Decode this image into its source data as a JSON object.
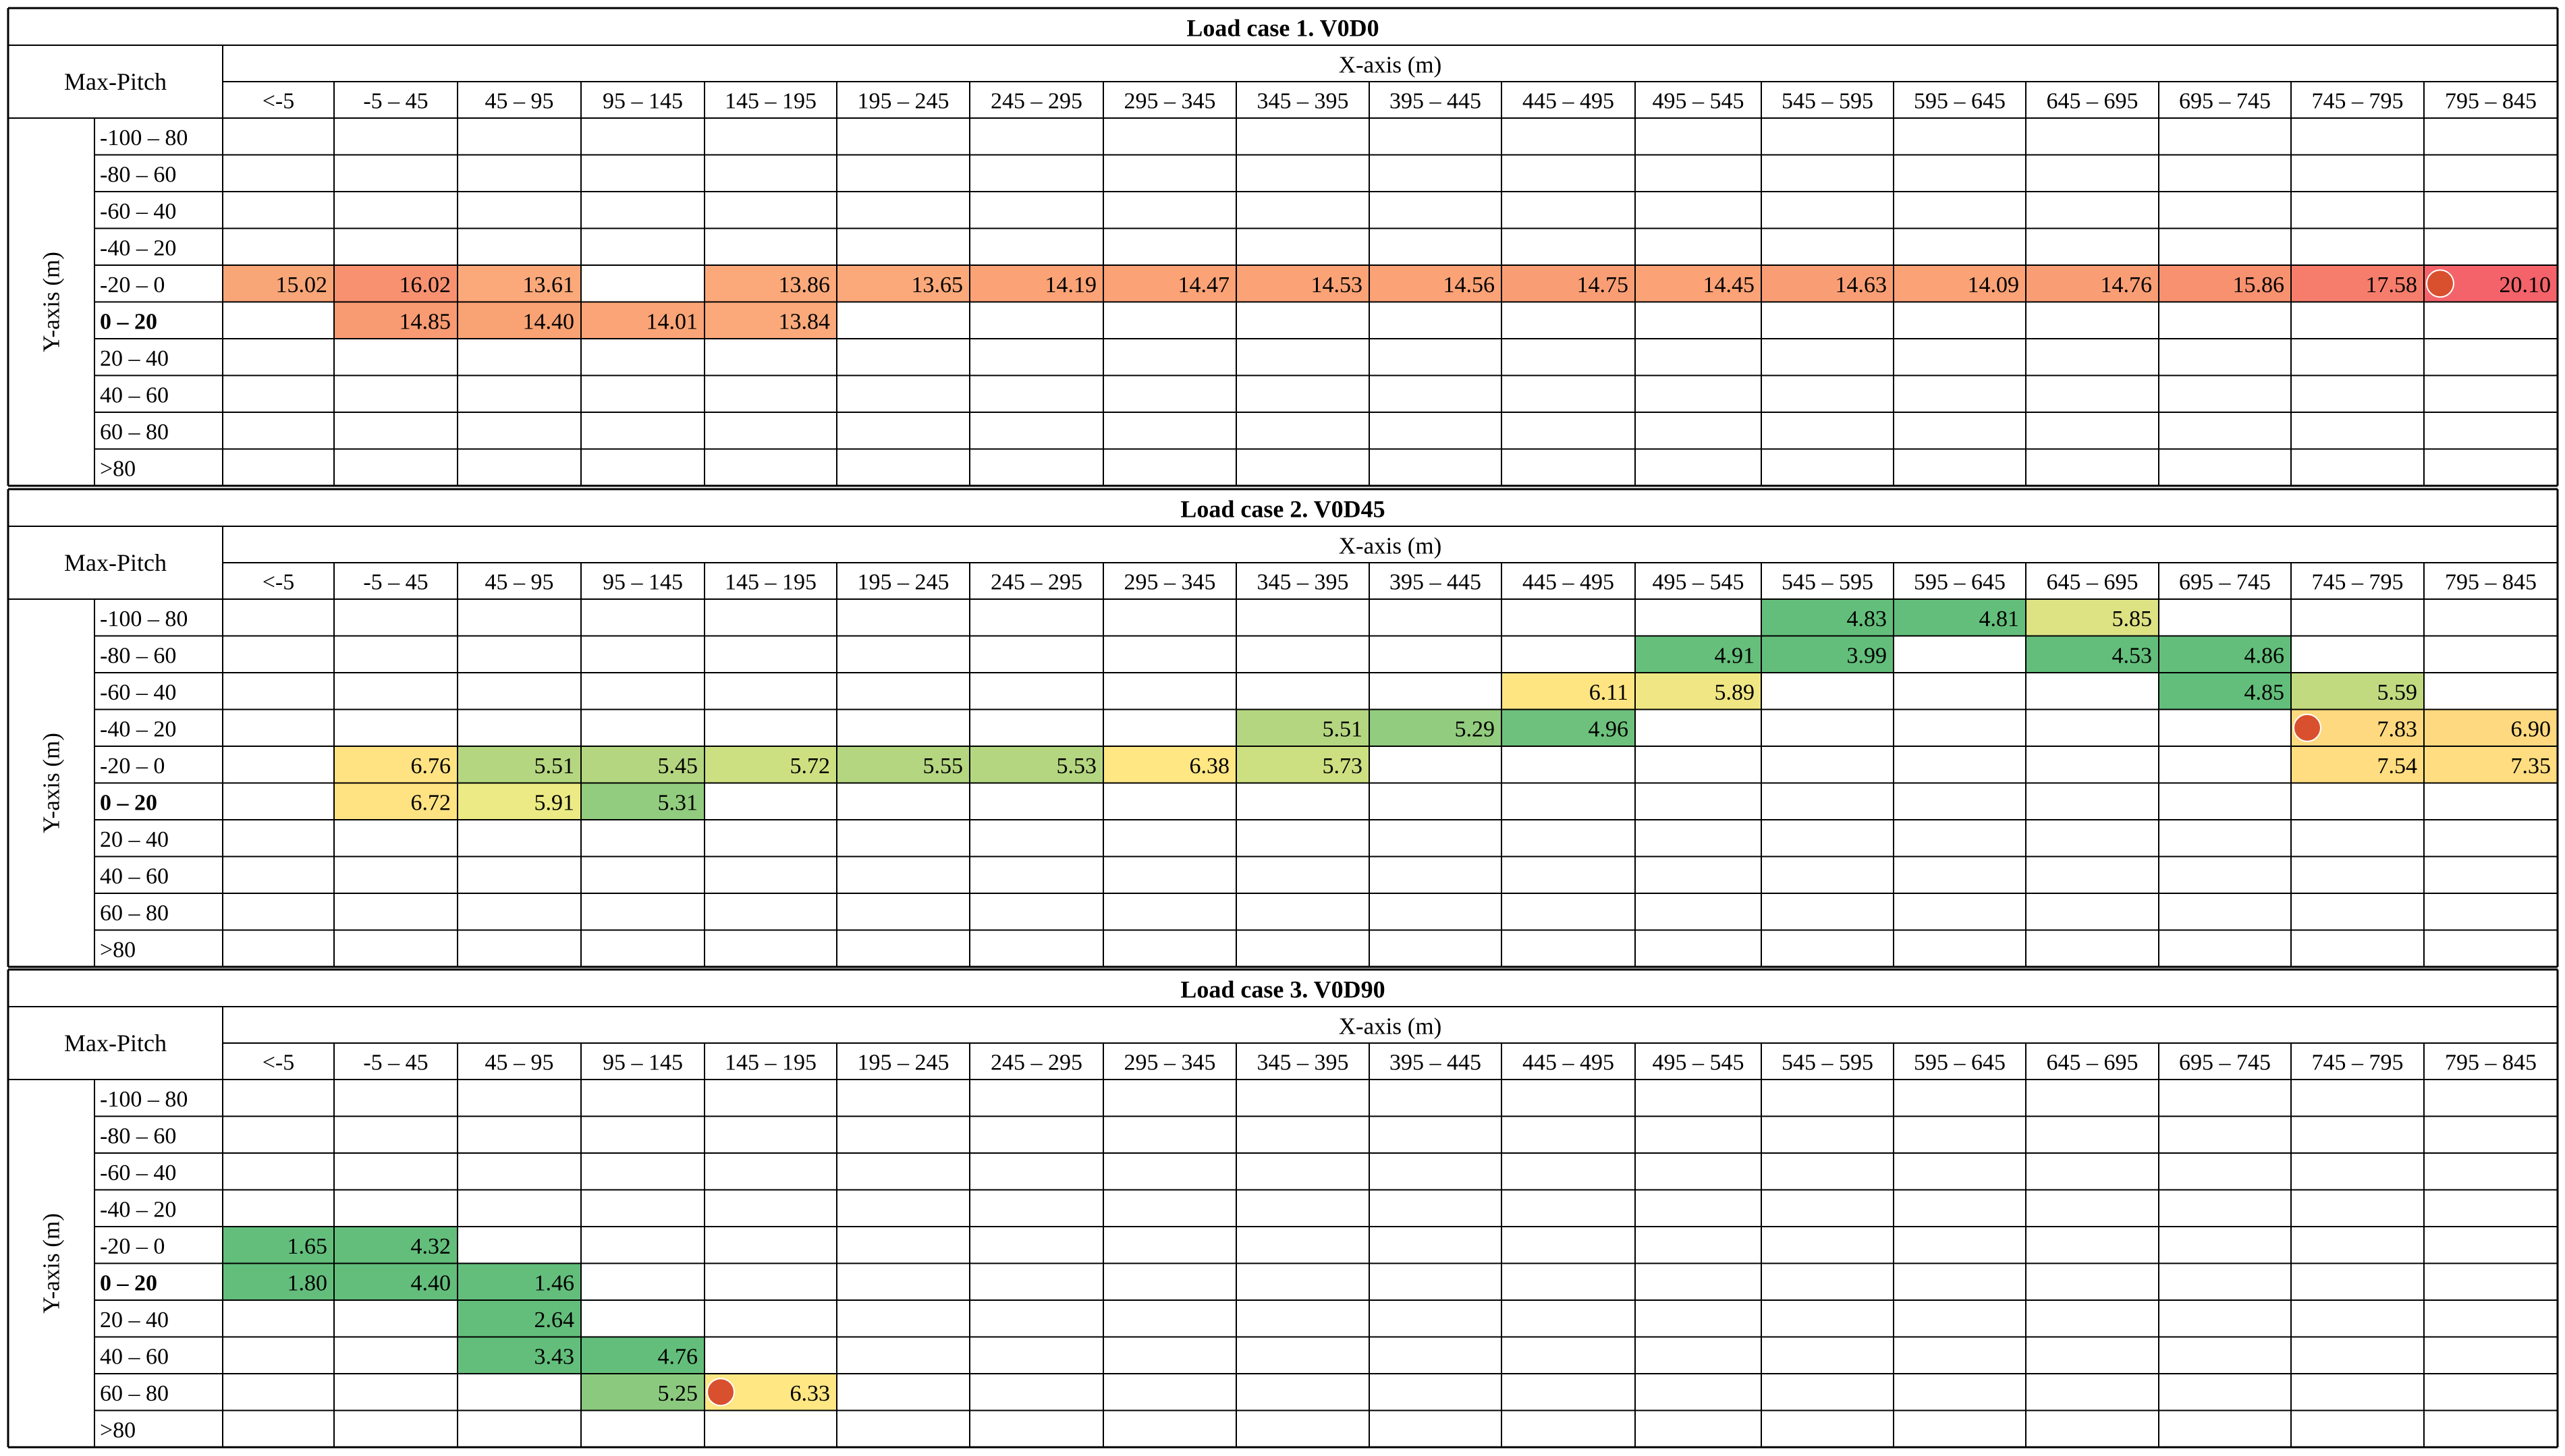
{
  "x_axis_label": "X-axis (m)",
  "y_axis_label": "Y-axis (m)",
  "corner_label": "Max-Pitch",
  "x_categories": [
    "<-5",
    "-5 – 45",
    "45 – 95",
    "95 – 145",
    "145 – 195",
    "195 – 245",
    "245 – 295",
    "295 – 345",
    "345 – 395",
    "395 – 445",
    "445 – 495",
    "495 – 545",
    "545 – 595",
    "595 – 645",
    "645 – 695",
    "695 – 745",
    "745 – 795",
    "795 – 845"
  ],
  "y_categories": [
    "-100 – 80",
    "-80 – 60",
    "-60 – 40",
    "-40 – 20",
    "-20 – 0",
    "0 – 20",
    "20 – 40",
    "40 – 60",
    "60 – 80",
    ">80"
  ],
  "bold_row_index": 5,
  "marker_color": "#d9502e",
  "chart_data": [
    {
      "type": "heatmap",
      "title": "Load case 1. V0D0",
      "cells": [
        {
          "row": 4,
          "col": 0,
          "value": "15.02",
          "color": "#f8a577"
        },
        {
          "row": 4,
          "col": 1,
          "value": "16.02",
          "color": "#f89170"
        },
        {
          "row": 4,
          "col": 2,
          "value": "13.61",
          "color": "#fba97a"
        },
        {
          "row": 4,
          "col": 4,
          "value": "13.86",
          "color": "#fba97a"
        },
        {
          "row": 4,
          "col": 5,
          "value": "13.65",
          "color": "#fba97a"
        },
        {
          "row": 4,
          "col": 6,
          "value": "14.19",
          "color": "#fba276"
        },
        {
          "row": 4,
          "col": 7,
          "value": "14.47",
          "color": "#fba276"
        },
        {
          "row": 4,
          "col": 8,
          "value": "14.53",
          "color": "#fba276"
        },
        {
          "row": 4,
          "col": 9,
          "value": "14.56",
          "color": "#fba276"
        },
        {
          "row": 4,
          "col": 10,
          "value": "14.75",
          "color": "#f99e74"
        },
        {
          "row": 4,
          "col": 11,
          "value": "14.45",
          "color": "#fba276"
        },
        {
          "row": 4,
          "col": 12,
          "value": "14.63",
          "color": "#f99e74"
        },
        {
          "row": 4,
          "col": 13,
          "value": "14.09",
          "color": "#fba276"
        },
        {
          "row": 4,
          "col": 14,
          "value": "14.76",
          "color": "#f99e74"
        },
        {
          "row": 4,
          "col": 15,
          "value": "15.86",
          "color": "#f8916f"
        },
        {
          "row": 4,
          "col": 16,
          "value": "17.58",
          "color": "#f67d6c"
        },
        {
          "row": 4,
          "col": 17,
          "value": "20.10",
          "color": "#f4636a"
        },
        {
          "row": 5,
          "col": 1,
          "value": "14.85",
          "color": "#f89a72"
        },
        {
          "row": 5,
          "col": 2,
          "value": "14.40",
          "color": "#f9a274"
        },
        {
          "row": 5,
          "col": 3,
          "value": "14.01",
          "color": "#faa477"
        },
        {
          "row": 5,
          "col": 4,
          "value": "13.84",
          "color": "#fba97a"
        }
      ],
      "marker": {
        "row": 4,
        "col": 17
      }
    },
    {
      "type": "heatmap",
      "title": "Load case 2. V0D45",
      "cells": [
        {
          "row": 0,
          "col": 12,
          "value": "4.83",
          "color": "#63be7b"
        },
        {
          "row": 0,
          "col": 13,
          "value": "4.81",
          "color": "#63be7b"
        },
        {
          "row": 0,
          "col": 14,
          "value": "5.85",
          "color": "#dde283"
        },
        {
          "row": 1,
          "col": 11,
          "value": "4.91",
          "color": "#66bf7b"
        },
        {
          "row": 1,
          "col": 12,
          "value": "3.99",
          "color": "#63be7b"
        },
        {
          "row": 1,
          "col": 14,
          "value": "4.53",
          "color": "#63be7b"
        },
        {
          "row": 1,
          "col": 15,
          "value": "4.86",
          "color": "#63be7b"
        },
        {
          "row": 2,
          "col": 10,
          "value": "6.11",
          "color": "#fee582"
        },
        {
          "row": 2,
          "col": 11,
          "value": "5.89",
          "color": "#f0e784"
        },
        {
          "row": 2,
          "col": 15,
          "value": "4.85",
          "color": "#63be7b"
        },
        {
          "row": 2,
          "col": 16,
          "value": "5.59",
          "color": "#c1da80"
        },
        {
          "row": 3,
          "col": 8,
          "value": "5.51",
          "color": "#b5d680"
        },
        {
          "row": 3,
          "col": 9,
          "value": "5.29",
          "color": "#92cc7e"
        },
        {
          "row": 3,
          "col": 10,
          "value": "4.96",
          "color": "#6dc17c"
        },
        {
          "row": 3,
          "col": 17,
          "value": "6.90",
          "color": "#ffd97f"
        },
        {
          "row": 3,
          "col": 16,
          "value": "7.83",
          "color": "#ffd97f"
        },
        {
          "row": 4,
          "col": 1,
          "value": "6.76",
          "color": "#ffe382"
        },
        {
          "row": 4,
          "col": 2,
          "value": "5.51",
          "color": "#b5d680"
        },
        {
          "row": 4,
          "col": 3,
          "value": "5.45",
          "color": "#b5d680"
        },
        {
          "row": 4,
          "col": 4,
          "value": "5.72",
          "color": "#cde081"
        },
        {
          "row": 4,
          "col": 5,
          "value": "5.55",
          "color": "#b5d680"
        },
        {
          "row": 4,
          "col": 6,
          "value": "5.53",
          "color": "#b5d680"
        },
        {
          "row": 4,
          "col": 7,
          "value": "6.38",
          "color": "#ffe783"
        },
        {
          "row": 4,
          "col": 8,
          "value": "5.73",
          "color": "#cde081"
        },
        {
          "row": 4,
          "col": 16,
          "value": "7.54",
          "color": "#ffdd80"
        },
        {
          "row": 4,
          "col": 17,
          "value": "7.35",
          "color": "#ffdd80"
        },
        {
          "row": 5,
          "col": 1,
          "value": "6.72",
          "color": "#ffe382"
        },
        {
          "row": 5,
          "col": 2,
          "value": "5.91",
          "color": "#ecea84"
        },
        {
          "row": 5,
          "col": 3,
          "value": "5.31",
          "color": "#92cc7e"
        }
      ],
      "marker": {
        "row": 3,
        "col": 16
      }
    },
    {
      "type": "heatmap",
      "title": "Load case 3. V0D90",
      "cells": [
        {
          "row": 4,
          "col": 0,
          "value": "1.65",
          "color": "#63be7b"
        },
        {
          "row": 4,
          "col": 1,
          "value": "4.32",
          "color": "#63be7b"
        },
        {
          "row": 5,
          "col": 0,
          "value": "1.80",
          "color": "#63be7b"
        },
        {
          "row": 5,
          "col": 1,
          "value": "4.40",
          "color": "#63be7b"
        },
        {
          "row": 5,
          "col": 2,
          "value": "1.46",
          "color": "#63be7b"
        },
        {
          "row": 6,
          "col": 2,
          "value": "2.64",
          "color": "#63be7b"
        },
        {
          "row": 7,
          "col": 2,
          "value": "3.43",
          "color": "#63be7b"
        },
        {
          "row": 7,
          "col": 3,
          "value": "4.76",
          "color": "#63be7b"
        },
        {
          "row": 8,
          "col": 3,
          "value": "5.25",
          "color": "#8bca7e"
        },
        {
          "row": 8,
          "col": 4,
          "value": "6.33",
          "color": "#ffe783"
        }
      ],
      "marker": {
        "row": 8,
        "col": 4
      }
    }
  ]
}
